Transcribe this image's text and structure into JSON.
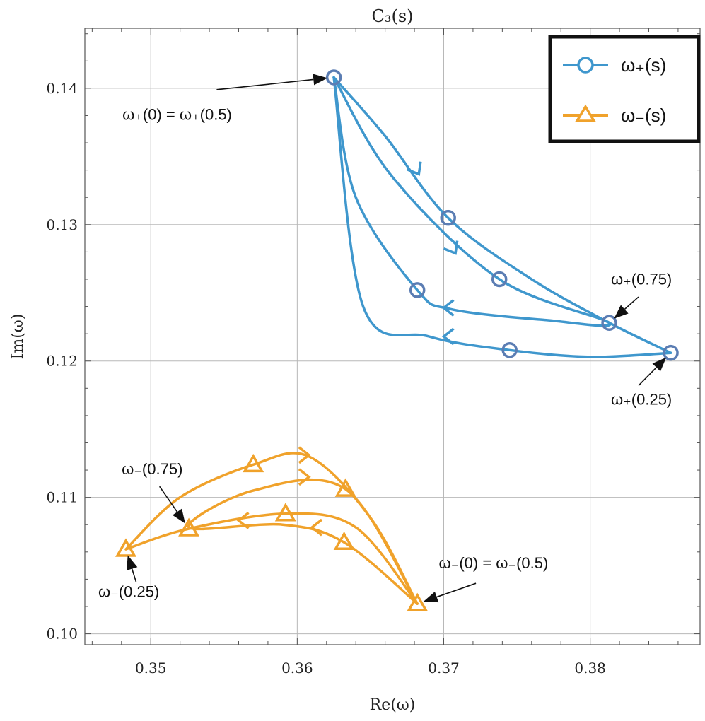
{
  "chart_data": {
    "type": "line",
    "title": "C₃(s)",
    "xlabel": "Re(ω)",
    "ylabel": "Im(ω)",
    "xlim": [
      0.3455,
      0.3875
    ],
    "ylim": [
      0.0992,
      0.1444
    ],
    "xticks": [
      0.35,
      0.36,
      0.37,
      0.38
    ],
    "xtick_labels": [
      "0.35",
      "0.36",
      "0.37",
      "0.38"
    ],
    "yticks": [
      0.1,
      0.11,
      0.12,
      0.13,
      0.14
    ],
    "ytick_labels": [
      "0.10",
      "0.11",
      "0.12",
      "0.13",
      "0.14"
    ],
    "grid": true,
    "legend_position": "top-right",
    "series": [
      {
        "name": "ω₊(s)",
        "color": "#3f97cd",
        "marker": "circle",
        "paths": [
          [
            [
              0.3625,
              0.1408
            ],
            [
              0.366,
              0.1365
            ],
            [
              0.3703,
              0.1305
            ],
            [
              0.376,
              0.126
            ],
            [
              0.3813,
              0.1228
            ],
            [
              0.3855,
              0.1206
            ]
          ],
          [
            [
              0.3855,
              0.1206
            ],
            [
              0.38,
              0.1203
            ],
            [
              0.3745,
              0.1208
            ],
            [
              0.369,
              0.1218
            ],
            [
              0.3645,
              0.124
            ],
            [
              0.3625,
              0.1408
            ]
          ],
          [
            [
              0.3625,
              0.1408
            ],
            [
              0.3665,
              0.1335
            ],
            [
              0.3738,
              0.126
            ],
            [
              0.3813,
              0.1228
            ],
            [
              0.377,
              0.123
            ],
            [
              0.3705,
              0.1238
            ],
            [
              0.3682,
              0.1252
            ],
            [
              0.364,
              0.132
            ],
            [
              0.3625,
              0.1408
            ]
          ]
        ],
        "markers": [
          [
            0.3625,
            0.1408
          ],
          [
            0.3703,
            0.1305
          ],
          [
            0.3738,
            0.126
          ],
          [
            0.3682,
            0.1252
          ],
          [
            0.3813,
            0.1228
          ],
          [
            0.3745,
            0.1208
          ],
          [
            0.3855,
            0.1206
          ]
        ],
        "arrows": [
          {
            "at": [
              0.3683,
              0.1337
            ],
            "dir": "down-right"
          },
          {
            "at": [
              0.3708,
              0.1279
            ],
            "dir": "down-right"
          },
          {
            "at": [
              0.37,
              0.1239
            ],
            "dir": "left"
          },
          {
            "at": [
              0.37,
              0.1218
            ],
            "dir": "left"
          }
        ]
      },
      {
        "name": "ω₋(s)",
        "color": "#f0a22b",
        "marker": "triangle",
        "paths": [
          [
            [
              0.3682,
              0.1022
            ],
            [
              0.365,
              0.1085
            ],
            [
              0.3608,
              0.113
            ],
            [
              0.357,
              0.1124
            ],
            [
              0.352,
              0.11
            ],
            [
              0.3483,
              0.1062
            ]
          ],
          [
            [
              0.3483,
              0.1062
            ],
            [
              0.3526,
              0.1077
            ],
            [
              0.3592,
              0.1088
            ],
            [
              0.364,
              0.1078
            ],
            [
              0.3682,
              0.1022
            ]
          ],
          [
            [
              0.3682,
              0.1022
            ],
            [
              0.3632,
              0.1067
            ],
            [
              0.359,
              0.108
            ],
            [
              0.3526,
              0.1078
            ],
            [
              0.357,
              0.1105
            ],
            [
              0.3633,
              0.1106
            ],
            [
              0.3682,
              0.1022
            ]
          ]
        ],
        "markers": [
          [
            0.357,
            0.1124
          ],
          [
            0.3633,
            0.1106
          ],
          [
            0.3592,
            0.1088
          ],
          [
            0.3526,
            0.1077
          ],
          [
            0.3632,
            0.1067
          ],
          [
            0.3483,
            0.1062
          ],
          [
            0.3682,
            0.1022
          ]
        ],
        "arrows": [
          {
            "at": [
              0.3608,
              0.1131
            ],
            "dir": "right"
          },
          {
            "at": [
              0.3608,
              0.1115
            ],
            "dir": "right"
          },
          {
            "at": [
              0.356,
              0.1083
            ],
            "dir": "left"
          },
          {
            "at": [
              0.361,
              0.1078
            ],
            "dir": "left"
          }
        ]
      }
    ],
    "annotations": [
      {
        "text": "ω₊(0) = ω₊(0.5)",
        "target": [
          0.3625,
          0.1408
        ],
        "label_at": [
          0.3518,
          0.1377
        ],
        "arrow_from": [
          0.3545,
          0.1399
        ]
      },
      {
        "text": "ω₊(0.75)",
        "target": [
          0.3813,
          0.1228
        ],
        "label_at": [
          0.3835,
          0.1256
        ],
        "arrow_from": [
          0.3833,
          0.1247
        ]
      },
      {
        "text": "ω₊(0.25)",
        "target": [
          0.3855,
          0.1206
        ],
        "label_at": [
          0.3835,
          0.1168
        ],
        "arrow_from": [
          0.3833,
          0.1182
        ]
      },
      {
        "text": "ω₋(0.75)",
        "target": [
          0.3526,
          0.1077
        ],
        "label_at": [
          0.3501,
          0.1117
        ],
        "arrow_from": [
          0.3506,
          0.1108
        ]
      },
      {
        "text": "ω₋(0.25)",
        "target": [
          0.3483,
          0.1062
        ],
        "label_at": [
          0.3485,
          0.1027
        ],
        "arrow_from": [
          0.349,
          0.1038
        ]
      },
      {
        "text": "ω₋(0) = ω₋(0.5)",
        "target": [
          0.3682,
          0.1022
        ],
        "label_at": [
          0.3734,
          0.1048
        ],
        "arrow_from": [
          0.3722,
          0.1037
        ]
      }
    ]
  }
}
